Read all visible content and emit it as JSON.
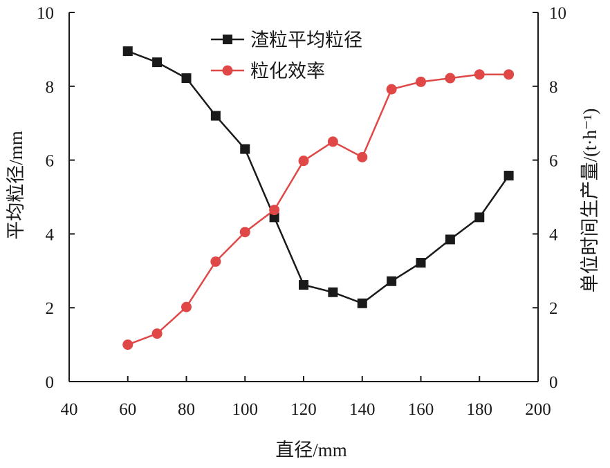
{
  "chart_data": {
    "type": "line",
    "x": [
      60,
      70,
      80,
      90,
      100,
      110,
      120,
      130,
      140,
      150,
      160,
      170,
      180,
      190
    ],
    "series": [
      {
        "name": "渣粒平均粒径",
        "axis": "left",
        "color": "#1a1a1a",
        "marker": "square",
        "values": [
          8.95,
          8.65,
          8.22,
          7.2,
          6.3,
          4.45,
          2.62,
          2.42,
          2.12,
          2.72,
          3.22,
          3.85,
          4.45,
          5.58
        ]
      },
      {
        "name": "粒化效率",
        "axis": "right",
        "color": "#e04848",
        "marker": "circle",
        "values": [
          1.0,
          1.3,
          2.02,
          3.25,
          4.05,
          4.65,
          5.98,
          6.5,
          6.08,
          7.92,
          8.12,
          8.22,
          8.32,
          8.32
        ]
      }
    ],
    "xlabel": "直径/mm",
    "ylabel": "平均粒径/mm",
    "ylabel_right": "单位时间生产量/(t·h⁻¹)",
    "xlim": [
      40,
      200
    ],
    "ylim": [
      0,
      10
    ],
    "ylim_right": [
      0,
      10
    ],
    "xticks": [
      "40",
      "60",
      "80",
      "100",
      "120",
      "140",
      "160",
      "180",
      "200"
    ],
    "yticks": [
      "0",
      "2",
      "4",
      "6",
      "8",
      "10"
    ],
    "yticks_right": [
      "0",
      "2",
      "4",
      "6",
      "8",
      "10"
    ],
    "grid": false,
    "legend_position": "top-center"
  }
}
